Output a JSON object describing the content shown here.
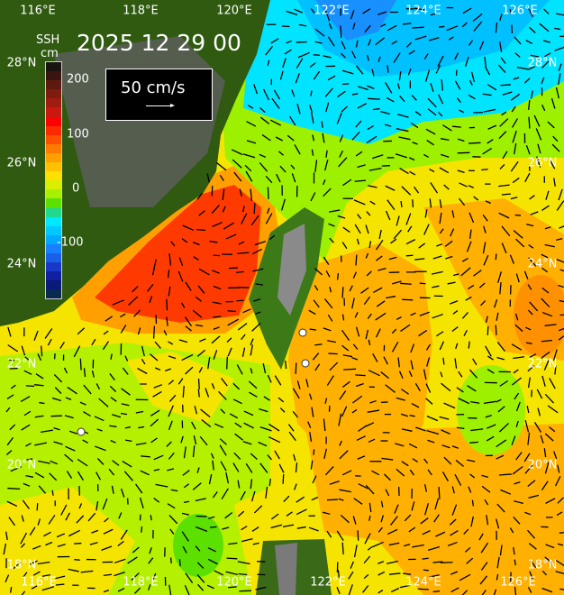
{
  "title": "2025 12 29 00",
  "colorbar": {
    "variable": "SSH",
    "unit": "cm",
    "ticks": [
      "200",
      "100",
      "0",
      "-100"
    ],
    "colors": [
      "#1a1410",
      "#3a1410",
      "#5c1a10",
      "#7e1c10",
      "#a01c10",
      "#c81810",
      "#ff0000",
      "#ff2a00",
      "#ff5000",
      "#ff7a00",
      "#ffa000",
      "#ffc000",
      "#ffe000",
      "#d8f000",
      "#a8f000",
      "#5ce000",
      "#20d890",
      "#00e8ff",
      "#00c8ff",
      "#00a8ff",
      "#1880ff",
      "#1860e8",
      "#1838c8",
      "#1020a0",
      "#0a1a78",
      "#0a2a50"
    ]
  },
  "scale": {
    "label": "50 cm/s"
  },
  "lon_labels": [
    "116°E",
    "118°E",
    "120°E",
    "122°E",
    "124°E",
    "126°E"
  ],
  "lat_labels": [
    "28°N",
    "26°N",
    "24°N",
    "22°N",
    "20°N",
    "18°N"
  ],
  "colors": {
    "sea_default": "#f5e400",
    "orange": "#ffb000",
    "red": "#ff3000",
    "green": "#9cf000",
    "cyan": "#00e8ff",
    "land": "#2f5a10",
    "mountain": "#6a6a6a"
  }
}
